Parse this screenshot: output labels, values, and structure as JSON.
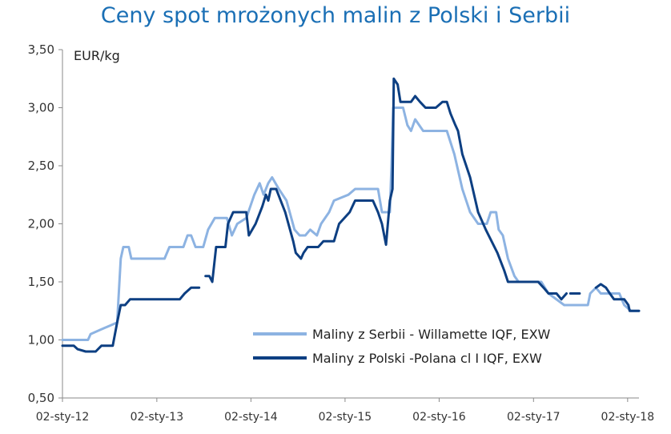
{
  "chart_data": {
    "type": "line",
    "title": "Ceny spot mrożonych malin z Polski i Serbii",
    "ylabel": "EUR/kg",
    "xlabel": "",
    "ylim": [
      0.5,
      3.5
    ],
    "yticks": [
      "0,50",
      "1,00",
      "1,50",
      "2,00",
      "2,50",
      "3,00",
      "3,50"
    ],
    "ytick_values": [
      0.5,
      1.0,
      1.5,
      2.0,
      2.5,
      3.0,
      3.5
    ],
    "xlim": [
      "2012-01-02",
      "2018-02-15"
    ],
    "xticks": [
      "02-sty-12",
      "02-sty-13",
      "02-sty-14",
      "02-sty-15",
      "02-sty-16",
      "02-sty-17",
      "02-sty-18"
    ],
    "xtick_dates": [
      "2012-01-02",
      "2013-01-02",
      "2014-01-02",
      "2015-01-02",
      "2016-01-02",
      "2017-01-02",
      "2018-01-02"
    ],
    "grid": false,
    "legend": "lower-right",
    "series": [
      {
        "name": "Maliny z Serbii - Willamette IQF, EXW",
        "color": "#8db3e2",
        "points": [
          [
            "2012-01-02",
            1.0
          ],
          [
            "2012-04-10",
            1.0
          ],
          [
            "2012-04-20",
            1.05
          ],
          [
            "2012-06-10",
            1.1
          ],
          [
            "2012-07-01",
            1.12
          ],
          [
            "2012-08-01",
            1.15
          ],
          [
            "2012-08-15",
            1.7
          ],
          [
            "2012-08-25",
            1.8
          ],
          [
            "2012-09-15",
            1.8
          ],
          [
            "2012-09-25",
            1.7
          ],
          [
            "2013-02-01",
            1.7
          ],
          [
            "2013-02-20",
            1.8
          ],
          [
            "2013-04-15",
            1.8
          ],
          [
            "2013-05-01",
            1.9
          ],
          [
            "2013-05-15",
            1.9
          ],
          [
            "2013-06-01",
            1.8
          ],
          [
            "2013-07-01",
            1.8
          ],
          [
            "2013-07-20",
            1.95
          ],
          [
            "2013-08-15",
            2.05
          ],
          [
            "2013-10-01",
            2.05
          ],
          [
            "2013-10-20",
            1.9
          ],
          [
            "2013-11-10",
            2.0
          ],
          [
            "2013-12-15",
            2.05
          ],
          [
            "2014-01-15",
            2.25
          ],
          [
            "2014-02-05",
            2.35
          ],
          [
            "2014-02-20",
            2.25
          ],
          [
            "2014-03-10",
            2.35
          ],
          [
            "2014-03-25",
            2.4
          ],
          [
            "2014-04-20",
            2.3
          ],
          [
            "2014-05-20",
            2.2
          ],
          [
            "2014-06-20",
            1.95
          ],
          [
            "2014-07-10",
            1.9
          ],
          [
            "2014-08-01",
            1.9
          ],
          [
            "2014-08-20",
            1.95
          ],
          [
            "2014-09-15",
            1.9
          ],
          [
            "2014-10-01",
            2.0
          ],
          [
            "2014-11-01",
            2.1
          ],
          [
            "2014-11-20",
            2.2
          ],
          [
            "2015-01-15",
            2.25
          ],
          [
            "2015-02-10",
            2.3
          ],
          [
            "2015-05-10",
            2.3
          ],
          [
            "2015-05-25",
            2.1
          ],
          [
            "2015-06-25",
            2.1
          ],
          [
            "2015-07-01",
            2.5
          ],
          [
            "2015-07-08",
            3.0
          ],
          [
            "2015-08-15",
            3.0
          ],
          [
            "2015-09-01",
            2.85
          ],
          [
            "2015-09-15",
            2.8
          ],
          [
            "2015-10-01",
            2.9
          ],
          [
            "2015-11-01",
            2.8
          ],
          [
            "2016-02-01",
            2.8
          ],
          [
            "2016-03-01",
            2.6
          ],
          [
            "2016-04-01",
            2.3
          ],
          [
            "2016-05-01",
            2.1
          ],
          [
            "2016-06-01",
            2.0
          ],
          [
            "2016-07-05",
            2.0
          ],
          [
            "2016-07-20",
            2.1
          ],
          [
            "2016-08-10",
            2.1
          ],
          [
            "2016-08-20",
            1.95
          ],
          [
            "2016-09-05",
            1.9
          ],
          [
            "2016-09-25",
            1.7
          ],
          [
            "2016-10-20",
            1.55
          ],
          [
            "2016-11-05",
            1.5
          ],
          [
            "2017-02-01",
            1.5
          ],
          [
            "2017-03-01",
            1.4
          ],
          [
            "2017-05-01",
            1.3
          ],
          [
            "2017-08-01",
            1.3
          ],
          [
            "2017-08-10",
            1.4
          ],
          [
            "2017-09-01",
            1.45
          ],
          [
            "2017-09-20",
            1.4
          ],
          [
            "2017-12-01",
            1.4
          ],
          [
            "2017-12-20",
            1.3
          ],
          [
            "2018-01-15",
            1.25
          ],
          [
            "2018-02-15",
            1.25
          ]
        ]
      },
      {
        "name": "Maliny z Polski -Polana cl I IQF, EXW",
        "color": "#0d3f82",
        "points": [
          [
            "2012-01-02",
            0.95
          ],
          [
            "2012-02-15",
            0.95
          ],
          [
            "2012-03-01",
            0.92
          ],
          [
            "2012-04-01",
            0.9
          ],
          [
            "2012-05-10",
            0.9
          ],
          [
            "2012-06-01",
            0.95
          ],
          [
            "2012-07-15",
            0.95
          ],
          [
            "2012-08-01",
            1.15
          ],
          [
            "2012-08-15",
            1.3
          ],
          [
            "2012-09-01",
            1.3
          ],
          [
            "2012-09-20",
            1.35
          ],
          [
            "2013-04-01",
            1.35
          ],
          [
            "2013-04-20",
            1.4
          ],
          [
            "2013-05-15",
            1.45
          ],
          [
            "2013-06-15",
            1.45
          ],
          null,
          [
            "2013-07-10",
            1.55
          ],
          [
            "2013-07-25",
            1.55
          ],
          [
            "2013-08-05",
            1.5
          ],
          [
            "2013-08-20",
            1.8
          ],
          [
            "2013-09-25",
            1.8
          ],
          [
            "2013-10-05",
            2.0
          ],
          [
            "2013-10-25",
            2.1
          ],
          [
            "2013-12-15",
            2.1
          ],
          [
            "2013-12-25",
            1.9
          ],
          [
            "2014-01-20",
            2.0
          ],
          [
            "2014-02-15",
            2.15
          ],
          [
            "2014-03-01",
            2.25
          ],
          [
            "2014-03-10",
            2.2
          ],
          [
            "2014-03-20",
            2.3
          ],
          [
            "2014-04-10",
            2.3
          ],
          [
            "2014-05-15",
            2.1
          ],
          [
            "2014-06-15",
            1.85
          ],
          [
            "2014-06-25",
            1.75
          ],
          [
            "2014-07-15",
            1.7
          ],
          [
            "2014-07-25",
            1.75
          ],
          [
            "2014-08-10",
            1.8
          ],
          [
            "2014-09-20",
            1.8
          ],
          [
            "2014-10-10",
            1.85
          ],
          [
            "2014-11-20",
            1.85
          ],
          [
            "2014-12-10",
            2.0
          ],
          [
            "2015-01-20",
            2.1
          ],
          [
            "2015-02-10",
            2.2
          ],
          [
            "2015-04-20",
            2.2
          ],
          [
            "2015-05-10",
            2.1
          ],
          [
            "2015-05-25",
            2.0
          ],
          [
            "2015-06-10",
            1.82
          ],
          [
            "2015-06-25",
            2.2
          ],
          [
            "2015-07-05",
            2.3
          ],
          [
            "2015-07-10",
            3.25
          ],
          [
            "2015-07-25",
            3.2
          ],
          [
            "2015-08-05",
            3.05
          ],
          [
            "2015-09-15",
            3.05
          ],
          [
            "2015-10-01",
            3.1
          ],
          [
            "2015-10-20",
            3.05
          ],
          [
            "2015-11-10",
            3.0
          ],
          [
            "2015-12-20",
            3.0
          ],
          [
            "2016-01-15",
            3.05
          ],
          [
            "2016-02-01",
            3.05
          ],
          [
            "2016-02-15",
            2.95
          ],
          [
            "2016-03-05",
            2.85
          ],
          [
            "2016-03-15",
            2.8
          ],
          [
            "2016-04-01",
            2.6
          ],
          [
            "2016-05-01",
            2.4
          ],
          [
            "2016-06-01",
            2.1
          ],
          [
            "2016-07-01",
            1.95
          ],
          [
            "2016-08-15",
            1.75
          ],
          [
            "2016-09-10",
            1.6
          ],
          [
            "2016-09-25",
            1.5
          ],
          [
            "2017-01-20",
            1.5
          ],
          [
            "2017-02-10",
            1.45
          ],
          [
            "2017-03-01",
            1.4
          ],
          [
            "2017-04-01",
            1.4
          ],
          [
            "2017-04-20",
            1.35
          ],
          [
            "2017-05-10",
            1.4
          ],
          null,
          [
            "2017-05-25",
            1.4
          ],
          [
            "2017-06-30",
            1.4
          ],
          null,
          [
            "2017-09-01",
            1.45
          ],
          [
            "2017-09-20",
            1.48
          ],
          [
            "2017-10-10",
            1.45
          ],
          [
            "2017-10-25",
            1.4
          ],
          [
            "2017-11-10",
            1.35
          ],
          [
            "2017-12-20",
            1.35
          ],
          [
            "2018-01-05",
            1.3
          ],
          [
            "2018-01-10",
            1.25
          ],
          [
            "2018-02-15",
            1.25
          ]
        ]
      }
    ]
  }
}
